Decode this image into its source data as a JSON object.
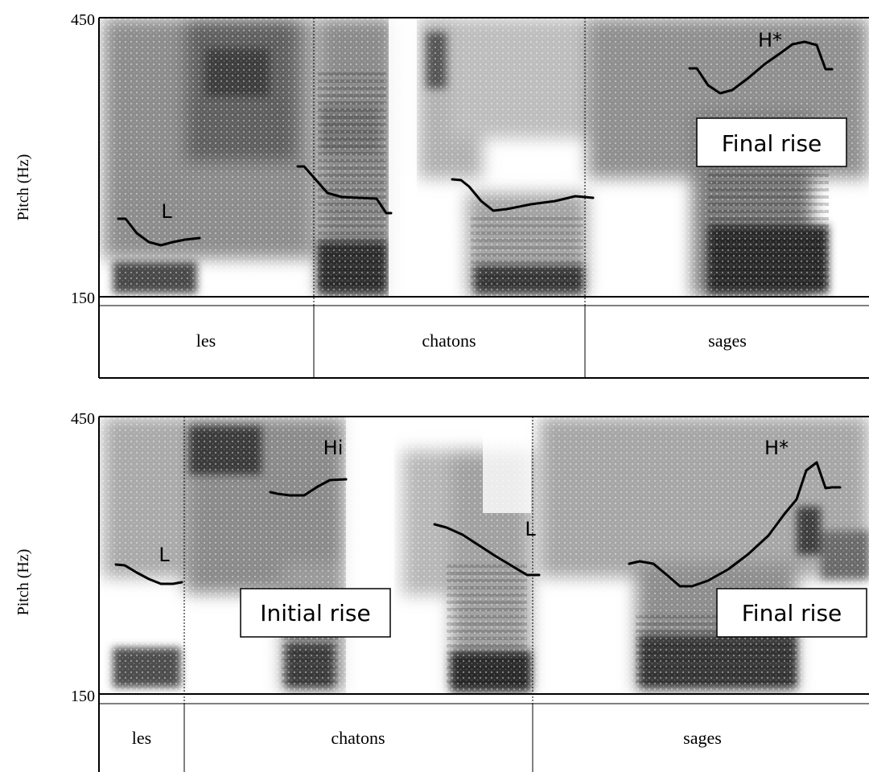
{
  "panels": [
    {
      "y_axis": {
        "label": "Pitch (Hz)",
        "max_label": "450",
        "min_label": "150",
        "min_hz": 150,
        "max_hz": 450
      },
      "words": [
        "les",
        "chatons",
        "sages"
      ],
      "tone_labels": [
        "L",
        "H*"
      ],
      "boxes": [
        "Final rise"
      ]
    },
    {
      "y_axis": {
        "label": "Pitch (Hz)",
        "max_label": "450",
        "min_label": "150",
        "min_hz": 150,
        "max_hz": 450
      },
      "words": [
        "les",
        "chatons",
        "sages"
      ],
      "tone_labels": [
        "L",
        "Hi",
        "L",
        "H*"
      ],
      "boxes": [
        "Initial rise",
        "Final rise"
      ]
    }
  ]
}
